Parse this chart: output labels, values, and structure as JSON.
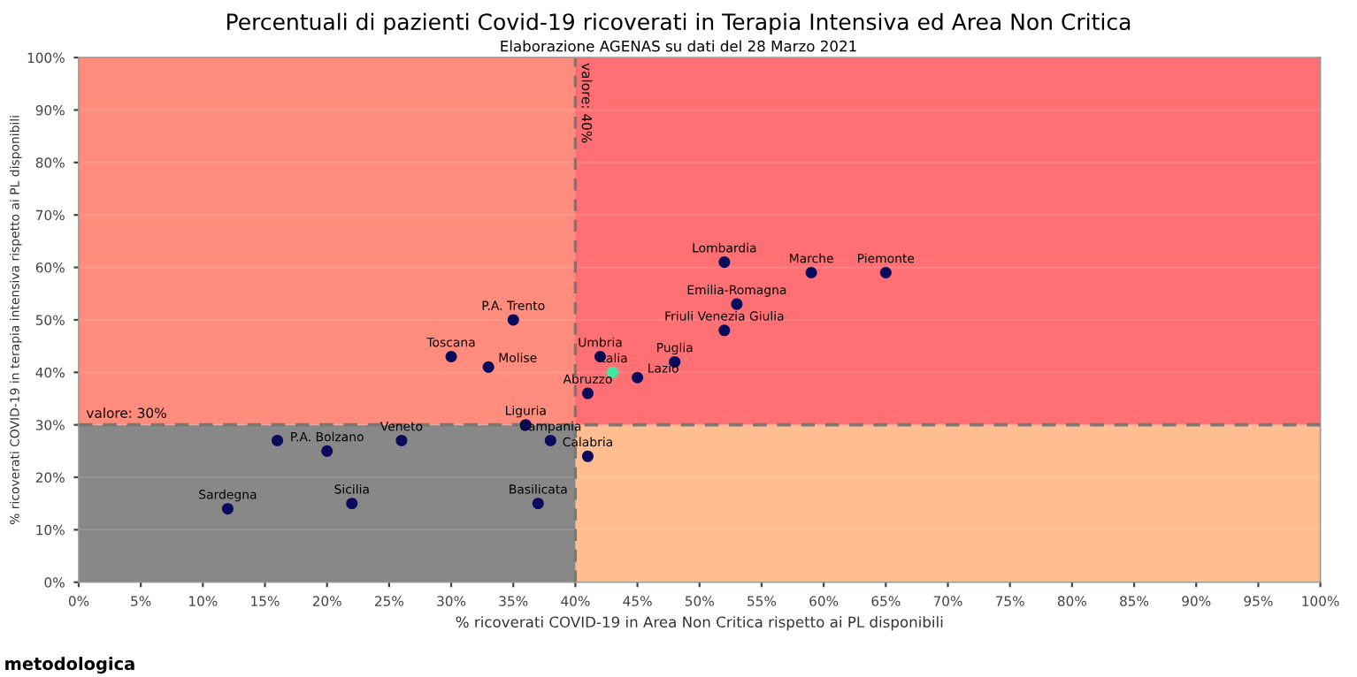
{
  "chart_data": {
    "type": "scatter",
    "title": "Percentuali di pazienti Covid-19 ricoverati in Terapia Intensiva ed Area Non Critica",
    "subtitle": "Elaborazione AGENAS su dati del 28 Marzo 2021",
    "xlabel": "% ricoverati COVID-19 in Area Non Critica rispetto ai PL disponibili",
    "ylabel": "% ricoverati COVID-19 in terapia intensiva rispetto ai PL disponibili",
    "marker": "circle",
    "grid": "y",
    "series": [
      {
        "x": [
          12,
          16,
          20,
          22,
          26,
          30,
          33,
          35,
          36,
          38,
          37,
          41,
          41,
          42,
          43,
          45,
          48,
          52,
          53,
          52,
          59,
          65
        ],
        "values": [
          14,
          27,
          25,
          15,
          27,
          43,
          41,
          50,
          30,
          27,
          15,
          24,
          36,
          43,
          40,
          39,
          42,
          48,
          53,
          61,
          59,
          59
        ],
        "colors": [
          "#0b0b5c",
          "#0b0b5c",
          "#0b0b5c",
          "#0b0b5c",
          "#0b0b5c",
          "#0b0b5c",
          "#0b0b5c",
          "#0b0b5c",
          "#0b0b5c",
          "#0b0b5c",
          "#0b0b5c",
          "#0b0b5c",
          "#0b0b5c",
          "#0b0b5c",
          "#3ee8a0",
          "#0b0b5c",
          "#0b0b5c",
          "#0b0b5c",
          "#0b0b5c",
          "#0b0b5c",
          "#0b0b5c",
          "#0b0b5c"
        ]
      }
    ],
    "annotations": [
      {
        "text": "Sardegna",
        "x": 12,
        "y": 14
      },
      {
        "text": "P.A. Bolzano",
        "x": 20,
        "y": 25
      },
      {
        "text": "Sicilia",
        "x": 22,
        "y": 15
      },
      {
        "text": "Veneto",
        "x": 26,
        "y": 27
      },
      {
        "text": "Toscana",
        "x": 30,
        "y": 43
      },
      {
        "text": "Molise",
        "x": 33,
        "y": 41
      },
      {
        "text": "P.A. Trento",
        "x": 35,
        "y": 50
      },
      {
        "text": "Liguria",
        "x": 36,
        "y": 30
      },
      {
        "text": "Campania",
        "x": 38,
        "y": 27
      },
      {
        "text": "Basilicata",
        "x": 37,
        "y": 15
      },
      {
        "text": "Calabria",
        "x": 41,
        "y": 24
      },
      {
        "text": "Abruzzo",
        "x": 41,
        "y": 36
      },
      {
        "text": "Umbria",
        "x": 42,
        "y": 43
      },
      {
        "text": "Italia",
        "x": 43,
        "y": 40
      },
      {
        "text": "Lazio",
        "x": 45,
        "y": 39
      },
      {
        "text": "Puglia",
        "x": 48,
        "y": 42
      },
      {
        "text": "Friuli Venezia Giulia",
        "x": 52,
        "y": 48
      },
      {
        "text": "Emilia-Romagna",
        "x": 53,
        "y": 53
      },
      {
        "text": "Lombardia",
        "x": 52,
        "y": 61
      },
      {
        "text": "Marche",
        "x": 59,
        "y": 59
      },
      {
        "text": "Piemonte",
        "x": 65,
        "y": 59
      },
      "metodologica"
    ],
    "ref_lines": [
      {
        "axis": "x",
        "value": 40,
        "label": "valore: 40%",
        "color": "#777777",
        "line_style": "dashed"
      },
      {
        "axis": "y",
        "value": 30,
        "label": "valore: 30%",
        "color": "#777777",
        "line_style": "dashed"
      }
    ],
    "bands": [
      {
        "axis": "y",
        "from": 30,
        "to": 100,
        "color": "#ff8c7c"
      },
      {
        "axis": "y",
        "from": 0,
        "to": 30,
        "color": "#888888"
      },
      {
        "axis": "x",
        "from": 40,
        "to": 100,
        "color": "#ff7074"
      },
      {
        "axis": "x",
        "from": 40,
        "to": 100,
        "color": "#ffbe90"
      }
    ],
    "xlim": [
      0,
      100
    ],
    "ylim": [
      0,
      100
    ],
    "xticks": [
      {
        "value": 0,
        "label": "0%"
      },
      {
        "value": 5,
        "label": "5%"
      },
      {
        "value": 10,
        "label": "10%"
      },
      {
        "value": 15,
        "label": "15%"
      },
      {
        "value": 20,
        "label": "20%"
      },
      {
        "value": 25,
        "label": "25%"
      },
      {
        "value": 30,
        "label": "30%"
      },
      {
        "value": 35,
        "label": "35%"
      },
      {
        "value": 40,
        "label": "40%"
      },
      {
        "value": 45,
        "label": "45%"
      },
      {
        "value": 50,
        "label": "50%"
      },
      {
        "value": 55,
        "label": "55%"
      },
      {
        "value": 60,
        "label": "60%"
      },
      {
        "value": 65,
        "label": "65%"
      },
      {
        "value": 70,
        "label": "70%"
      },
      {
        "value": 75,
        "label": "75%"
      },
      {
        "value": 80,
        "label": "80%"
      },
      {
        "value": 85,
        "label": "85%"
      },
      {
        "value": 90,
        "label": "90%"
      },
      {
        "value": 95,
        "label": "95%"
      },
      {
        "value": 100,
        "label": "100%"
      }
    ],
    "yticks": [
      {
        "value": 0,
        "label": "0%"
      },
      {
        "value": 10,
        "label": "10%"
      },
      {
        "value": 20,
        "label": "20%"
      },
      {
        "value": 30,
        "label": "30%"
      },
      {
        "value": 40,
        "label": "40%"
      },
      {
        "value": 50,
        "label": "50%"
      },
      {
        "value": 60,
        "label": "60%"
      },
      {
        "value": 70,
        "label": "70%"
      },
      {
        "value": 80,
        "label": "80%"
      },
      {
        "value": 90,
        "label": "90%"
      },
      {
        "value": 100,
        "label": "100%"
      }
    ]
  }
}
